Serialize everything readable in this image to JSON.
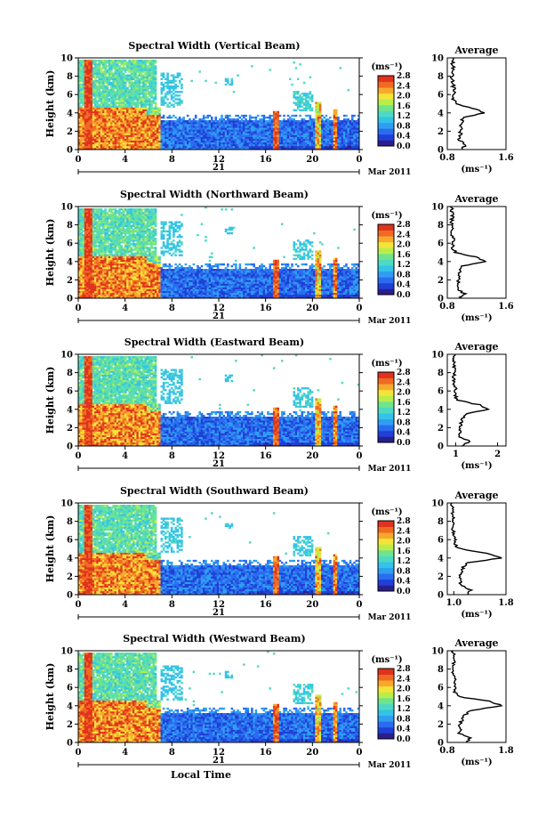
{
  "colors": {
    "colorbar": [
      "#2a1e8c",
      "#1f3fd6",
      "#2a6cf0",
      "#2f9ef2",
      "#34c3e8",
      "#4ed9c3",
      "#6fe48c",
      "#b9ee4a",
      "#f4e43a",
      "#f8a92c",
      "#f06a22",
      "#e0321c"
    ],
    "bg": "#ffffff",
    "sky": "#3aa7ee",
    "low": "#2346e0",
    "high": "#e43a1e"
  },
  "chart_data": [
    {
      "type": "heatmap",
      "title": "Spectral Width (Vertical Beam)",
      "ylabel": "Height (km)",
      "xlim": [
        0,
        24
      ],
      "ylim": [
        0,
        10
      ],
      "x_ticks": [
        "0",
        "4",
        "8",
        "12",
        "16",
        "20",
        "0"
      ],
      "y_ticks": [
        "0",
        "2",
        "4",
        "6",
        "8",
        "10"
      ],
      "date_center": "21",
      "date_right": "Mar 2011",
      "colorbar": {
        "unit": "(ms⁻¹)",
        "ticks": [
          "0.0",
          "0.4",
          "0.8",
          "1.2",
          "1.6",
          "2.0",
          "2.4",
          "2.8"
        ],
        "range": [
          0,
          2.8
        ]
      },
      "average": {
        "title": "Average",
        "xlabel": "(ms⁻¹)",
        "x_ticks": [
          "0.8",
          "1.6"
        ],
        "xlim": [
          0.8,
          1.6
        ],
        "y": [
          0,
          0.5,
          1,
          1.5,
          2,
          2.5,
          3,
          3.5,
          4,
          4.5,
          5,
          5.5,
          6,
          7,
          8,
          9,
          10
        ],
        "x": [
          1.0,
          1.05,
          0.96,
          0.98,
          0.98,
          0.99,
          1.0,
          1.02,
          1.3,
          1.15,
          0.92,
          0.88,
          0.9,
          0.88,
          0.86,
          0.88,
          0.86
        ]
      }
    },
    {
      "type": "heatmap",
      "title": "Spectral Width (Northward Beam)",
      "ylabel": "Height (km)",
      "xlim": [
        0,
        24
      ],
      "ylim": [
        0,
        10
      ],
      "x_ticks": [
        "0",
        "4",
        "8",
        "12",
        "16",
        "20",
        "0"
      ],
      "y_ticks": [
        "0",
        "2",
        "4",
        "6",
        "8",
        "10"
      ],
      "date_center": "21",
      "date_right": "Mar 2011",
      "colorbar": {
        "unit": "(ms⁻¹)",
        "ticks": [
          "0.0",
          "0.4",
          "0.8",
          "1.2",
          "1.6",
          "2.0",
          "2.4",
          "2.8"
        ],
        "range": [
          0,
          2.8
        ]
      },
      "average": {
        "title": "Average",
        "xlabel": "(ms⁻¹)",
        "x_ticks": [
          "0.8",
          "1.6"
        ],
        "xlim": [
          0.8,
          1.6
        ],
        "y": [
          0,
          0.5,
          1,
          1.5,
          2,
          2.5,
          3,
          3.5,
          4,
          4.5,
          5,
          5.5,
          6,
          7,
          8,
          9,
          10
        ],
        "x": [
          0.98,
          1.03,
          0.94,
          0.96,
          0.95,
          0.96,
          0.98,
          1.0,
          1.32,
          1.18,
          0.92,
          0.87,
          0.89,
          0.87,
          0.86,
          0.87,
          0.85
        ]
      }
    },
    {
      "type": "heatmap",
      "title": "Spectral Width (Eastward Beam)",
      "ylabel": "Height (km)",
      "xlim": [
        0,
        24
      ],
      "ylim": [
        0,
        10
      ],
      "x_ticks": [
        "0",
        "4",
        "8",
        "12",
        "16",
        "20",
        "0"
      ],
      "y_ticks": [
        "0",
        "2",
        "4",
        "6",
        "8",
        "10"
      ],
      "date_center": "21",
      "date_right": "Mar 2011",
      "colorbar": {
        "unit": "(ms⁻¹)",
        "ticks": [
          "0.0",
          "0.4",
          "0.8",
          "1.2",
          "1.6",
          "2.0",
          "2.4",
          "2.8"
        ],
        "range": [
          0,
          2.8
        ]
      },
      "average": {
        "title": "Average",
        "xlabel": "(ms⁻¹)",
        "x_ticks": [
          "1",
          "2"
        ],
        "xlim": [
          0.8,
          2.2
        ],
        "y": [
          0,
          0.5,
          1,
          1.5,
          2,
          2.5,
          3,
          3.5,
          4,
          4.5,
          5,
          5.5,
          6,
          7,
          8,
          9,
          10
        ],
        "x": [
          1.15,
          1.35,
          1.05,
          1.1,
          1.1,
          1.12,
          1.15,
          1.25,
          1.8,
          1.55,
          1.05,
          0.98,
          1.0,
          0.97,
          0.95,
          0.97,
          0.95
        ]
      }
    },
    {
      "type": "heatmap",
      "title": "Spectral Width (Southward Beam)",
      "ylabel": "Height (km)",
      "xlim": [
        0,
        24
      ],
      "ylim": [
        0,
        10
      ],
      "x_ticks": [
        "0",
        "4",
        "8",
        "12",
        "16",
        "20",
        "0"
      ],
      "y_ticks": [
        "0",
        "2",
        "4",
        "6",
        "8",
        "10"
      ],
      "date_center": "21",
      "date_right": "Mar 2011",
      "colorbar": {
        "unit": "(ms⁻¹)",
        "ticks": [
          "0.0",
          "0.4",
          "0.8",
          "1.2",
          "1.6",
          "2.0",
          "2.4",
          "2.8"
        ],
        "range": [
          0,
          2.8
        ]
      },
      "average": {
        "title": "Average",
        "xlabel": "(ms⁻¹)",
        "x_ticks": [
          "1.0",
          "1.8"
        ],
        "xlim": [
          0.9,
          1.8
        ],
        "y": [
          0,
          0.5,
          1,
          1.5,
          2,
          2.5,
          3,
          3.5,
          4,
          4.5,
          5,
          5.5,
          6,
          7,
          8,
          9,
          10
        ],
        "x": [
          1.2,
          1.25,
          1.12,
          1.1,
          1.1,
          1.12,
          1.15,
          1.2,
          1.75,
          1.5,
          1.1,
          1.0,
          1.02,
          0.99,
          0.98,
          0.99,
          0.97
        ]
      }
    },
    {
      "type": "heatmap",
      "title": "Spectral Width (Westward Beam)",
      "ylabel": "Height (km)",
      "xlabel": "Local Time",
      "xlim": [
        0,
        24
      ],
      "ylim": [
        0,
        10
      ],
      "x_ticks": [
        "0",
        "4",
        "8",
        "12",
        "16",
        "20",
        "0"
      ],
      "y_ticks": [
        "0",
        "2",
        "4",
        "6",
        "8",
        "10"
      ],
      "date_center": "21",
      "date_right": "Mar 2011",
      "colorbar": {
        "unit": "(ms⁻¹)",
        "ticks": [
          "0.0",
          "0.4",
          "0.8",
          "1.2",
          "1.6",
          "2.0",
          "2.4",
          "2.8"
        ],
        "range": [
          0,
          2.8
        ]
      },
      "average": {
        "title": "Average",
        "xlabel": "(ms⁻¹)",
        "x_ticks": [
          "0.8",
          "1.8"
        ],
        "xlim": [
          0.8,
          1.8
        ],
        "y": [
          0,
          0.5,
          1,
          1.5,
          2,
          2.5,
          3,
          3.5,
          4,
          4.5,
          5,
          5.5,
          6,
          7,
          8,
          9,
          10
        ],
        "x": [
          1.1,
          1.2,
          1.0,
          1.02,
          1.02,
          1.05,
          1.1,
          1.2,
          1.75,
          1.5,
          1.0,
          0.92,
          0.94,
          0.92,
          0.9,
          0.91,
          0.9
        ]
      }
    }
  ]
}
